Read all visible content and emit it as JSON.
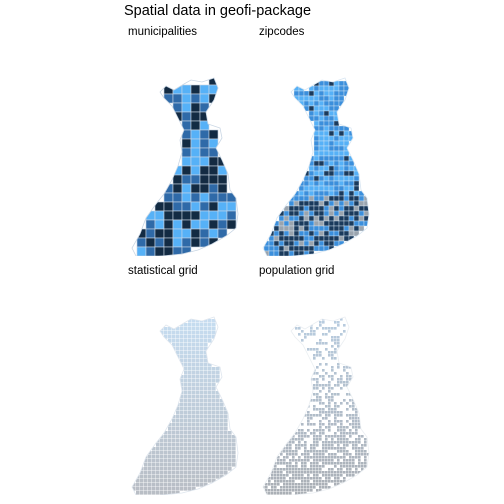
{
  "title": "Spatial data in geofi-package",
  "panels": [
    {
      "label": "municipalities",
      "style": "municipalities",
      "colors": {
        "dark": "#132b43",
        "mid": "#2f6aa8",
        "light": "#56b1f7",
        "edge": "#c9d6e4"
      }
    },
    {
      "label": "zipcodes",
      "style": "zipcodes",
      "colors": {
        "dark": "#1a3a5c",
        "mid": "#3b8fdc",
        "light": "#56b1f7",
        "edge": "#d8e6f2"
      }
    },
    {
      "label": "statistical grid",
      "style": "statgrid",
      "colors": {
        "north": "#c6ddf1",
        "south": "#b8bcc2",
        "edge": "#dfe6ee"
      }
    },
    {
      "label": "population grid",
      "style": "popgrid",
      "colors": {
        "north": "#b9cde0",
        "south": "#a9adb3",
        "edge": "#eaeef2"
      }
    }
  ]
}
